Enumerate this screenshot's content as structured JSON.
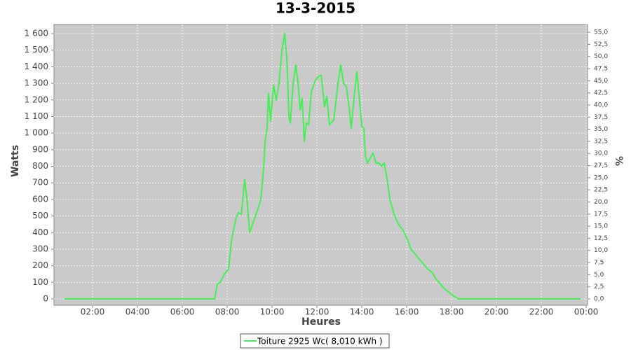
{
  "chart_data": {
    "type": "line",
    "title": "13-3-2015",
    "xlabel": "Heures",
    "ylabel": "Watts",
    "y2label": "%",
    "x": [
      0.75,
      7.44,
      7.56,
      7.69,
      7.88,
      8.06,
      8.19,
      8.38,
      8.5,
      8.63,
      8.78,
      8.88,
      9.0,
      9.13,
      9.31,
      9.5,
      9.63,
      9.69,
      9.78,
      9.84,
      9.94,
      10.06,
      10.19,
      10.31,
      10.44,
      10.56,
      10.66,
      10.75,
      10.81,
      10.94,
      11.06,
      11.16,
      11.25,
      11.34,
      11.44,
      11.53,
      11.63,
      11.75,
      11.94,
      12.06,
      12.19,
      12.34,
      12.44,
      12.56,
      12.75,
      12.94,
      13.06,
      13.19,
      13.31,
      13.44,
      13.53,
      13.66,
      13.78,
      13.91,
      14.0,
      14.09,
      14.16,
      14.25,
      14.38,
      14.5,
      14.63,
      14.75,
      14.88,
      15.0,
      15.13,
      15.25,
      15.44,
      15.63,
      15.81,
      16.0,
      16.19,
      16.38,
      16.56,
      16.75,
      16.94,
      17.13,
      17.31,
      17.5,
      17.69,
      17.88,
      18.06,
      18.19,
      18.31,
      23.75
    ],
    "series": [
      {
        "name": "Toiture 2925 Wc( 8,010 kWh )",
        "color": "#44ee55",
        "values": [
          0,
          0,
          90,
          100,
          150,
          180,
          350,
          480,
          520,
          510,
          720,
          600,
          400,
          450,
          520,
          600,
          800,
          950,
          1030,
          1240,
          1070,
          1290,
          1200,
          1300,
          1500,
          1600,
          1450,
          1100,
          1060,
          1300,
          1410,
          1300,
          1140,
          1210,
          950,
          1060,
          1050,
          1250,
          1320,
          1340,
          1350,
          1160,
          1220,
          1050,
          1080,
          1300,
          1410,
          1300,
          1280,
          1150,
          1030,
          1220,
          1370,
          1180,
          1040,
          1030,
          860,
          820,
          850,
          880,
          820,
          820,
          800,
          820,
          720,
          600,
          510,
          450,
          420,
          370,
          300,
          270,
          240,
          210,
          180,
          160,
          120,
          90,
          60,
          40,
          20,
          10,
          0,
          0
        ]
      }
    ],
    "xlim": [
      0.28,
      24.06
    ],
    "xticks": [
      {
        "value": 2,
        "label": "02:00"
      },
      {
        "value": 4,
        "label": "04:00"
      },
      {
        "value": 6,
        "label": "06:00"
      },
      {
        "value": 8,
        "label": "08:00"
      },
      {
        "value": 10,
        "label": "10:00"
      },
      {
        "value": 12,
        "label": "12:00"
      },
      {
        "value": 14,
        "label": "14:00"
      },
      {
        "value": 16,
        "label": "16:00"
      },
      {
        "value": 18,
        "label": "18:00"
      },
      {
        "value": 20,
        "label": "20:00"
      },
      {
        "value": 22,
        "label": "22:00"
      },
      {
        "value": 24,
        "label": "00:00"
      }
    ],
    "ylim": [
      -38,
      1655
    ],
    "yticks": [
      0,
      100,
      200,
      300,
      400,
      500,
      600,
      700,
      800,
      900,
      {
        "value": 1000,
        "label": "1 000"
      },
      {
        "value": 1100,
        "label": "1 100"
      },
      {
        "value": 1200,
        "label": "1 200"
      },
      {
        "value": 1300,
        "label": "1 300"
      },
      {
        "value": 1400,
        "label": "1 400"
      },
      {
        "value": 1500,
        "label": "1 500"
      },
      {
        "value": 1600,
        "label": "1 600"
      }
    ],
    "y2lim": [
      -1.3,
      56.6
    ],
    "y2ticks": [
      {
        "value": 0,
        "label": "0,0"
      },
      {
        "value": 2.5,
        "label": "2,5"
      },
      {
        "value": 5,
        "label": "5,0"
      },
      {
        "value": 7.5,
        "label": "7,5"
      },
      {
        "value": 10,
        "label": "10,0"
      },
      {
        "value": 12.5,
        "label": "12,5"
      },
      {
        "value": 15,
        "label": "15,0"
      },
      {
        "value": 17.5,
        "label": "17,5"
      },
      {
        "value": 20,
        "label": "20,0"
      },
      {
        "value": 22.5,
        "label": "22,5"
      },
      {
        "value": 25,
        "label": "25,0"
      },
      {
        "value": 27.5,
        "label": "27,5"
      },
      {
        "value": 30,
        "label": "30,0"
      },
      {
        "value": 32.5,
        "label": "32,5"
      },
      {
        "value": 35,
        "label": "35,0"
      },
      {
        "value": 37.5,
        "label": "37,5"
      },
      {
        "value": 40,
        "label": "40,0"
      },
      {
        "value": 42.5,
        "label": "42,5"
      },
      {
        "value": 45,
        "label": "45,0"
      },
      {
        "value": 47.5,
        "label": "47,5"
      },
      {
        "value": 50,
        "label": "50,0"
      },
      {
        "value": 52.5,
        "label": "52,5"
      },
      {
        "value": 55,
        "label": "55,0"
      }
    ],
    "grid": true
  }
}
